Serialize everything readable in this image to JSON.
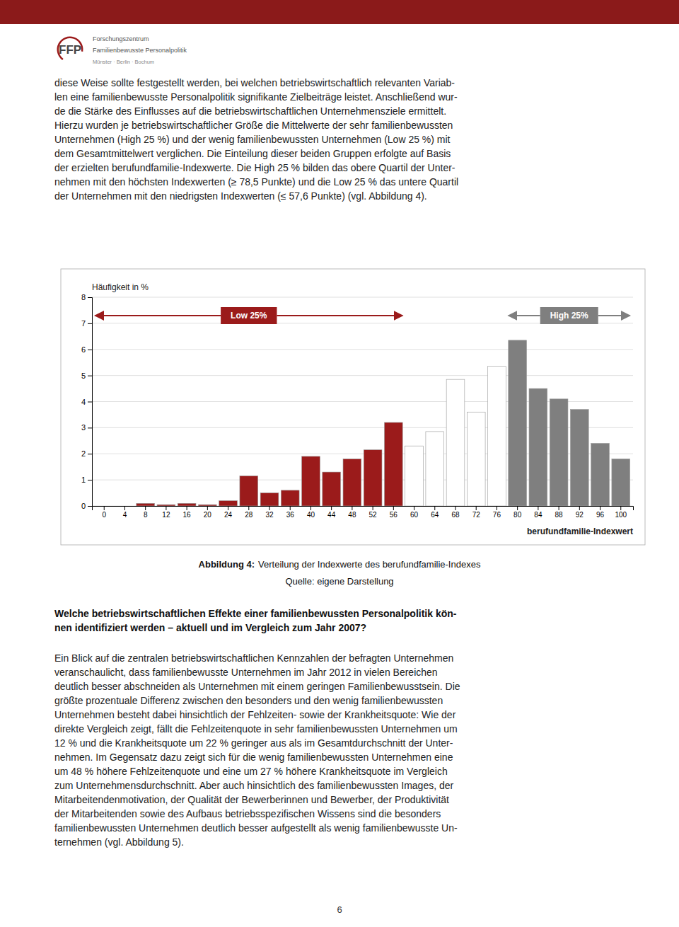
{
  "chart_data": {
    "type": "bar",
    "xlabel": "berufundfamilie-Indexwert",
    "ylabel": "Häufigkeit in %",
    "categories": [
      "0",
      "4",
      "8",
      "12",
      "16",
      "20",
      "24",
      "28",
      "32",
      "36",
      "40",
      "44",
      "48",
      "52",
      "56",
      "60",
      "64",
      "68",
      "72",
      "76",
      "80",
      "84",
      "88",
      "92",
      "96",
      "100"
    ],
    "values": [
      0.0,
      0.0,
      0.1,
      0.05,
      0.1,
      0.05,
      0.2,
      1.15,
      0.5,
      0.6,
      1.9,
      1.3,
      1.8,
      2.15,
      3.2,
      2.3,
      2.85,
      4.85,
      3.6,
      5.35,
      6.35,
      4.5,
      4.1,
      3.7,
      2.4,
      1.8
    ],
    "colors": [
      "#9B1B1B",
      "#9B1B1B",
      "#9B1B1B",
      "#9B1B1B",
      "#9B1B1B",
      "#9B1B1B",
      "#9B1B1B",
      "#9B1B1B",
      "#9B1B1B",
      "#9B1B1B",
      "#9B1B1B",
      "#9B1B1B",
      "#9B1B1B",
      "#9B1B1B",
      "#9B1B1B",
      "#FFFFFF",
      "#FFFFFF",
      "#FFFFFF",
      "#FFFFFF",
      "#FFFFFF",
      "#7F7F7F",
      "#7F7F7F",
      "#7F7F7F",
      "#7F7F7F",
      "#7F7F7F",
      "#7F7F7F"
    ],
    "ylim": [
      0,
      8
    ],
    "yticks": [
      0,
      1,
      2,
      3,
      4,
      5,
      6,
      7,
      8
    ],
    "grid": true,
    "annotations": [
      {
        "text": "Low 25%",
        "color": "#9B1B1B"
      },
      {
        "text": "High 25%",
        "color": "#7F7F7F"
      }
    ]
  },
  "page": {
    "logo": [
      "FFP",
      "Forschungszentrum",
      "Familienbewusste Personalpolitik",
      "Münster · Berlin · Bochum"
    ],
    "body_text": [
      "diese Weise sollte festgestellt werden, bei welchen betriebswirtschaftlich relevanten Variab-",
      "len eine familienbewusste Personalpolitik signifikante Zielbeiträge leistet. Anschließend wur-",
      "de die Stärke des Einflusses auf die betriebswirtschaftlichen Unternehmensziele ermittelt.",
      "Hierzu wurden je betriebswirtschaftlicher Größe die Mittelwerte der sehr familienbewussten",
      "Unternehmen (High 25 %) und der wenig familienbewussten Unternehmen (Low 25 %) mit",
      "dem Gesamtmittelwert verglichen. Die Einteilung dieser beiden Gruppen erfolgte auf Basis",
      "der erzielten berufu​ndfamilie-Indexwerte. Die High 25 % bilden das obere Quartil der Unter-",
      "nehmen mit den höchsten Indexwerten (≥ 78,5 Punkte) und die Low 25 % das untere Quartil",
      "der Unternehmen mit den niedrigsten Indexwerten (≤ 57,6 Punkte) (vgl. Abbildung 4)."
    ],
    "caption_bold": "Abbildung 4:",
    "caption": "Verteilung der Indexwerte des berufundfamilie-Indexes",
    "caption_source": "Quelle: eigene Darstellung",
    "section_text": [
      "Welche betriebswirtschaftlichen Effekte einer familienbewussten Personalpolitik kön-",
      "nen identifiziert werden – aktuell und im Vergleich zum Jahr 2007?"
    ],
    "bottom_text": [
      "Ein Blick auf die zentralen betriebswirtschaftlichen Kennzahlen der befragten Unternehmen",
      "veranschaulicht, dass familienbewusste Unternehmen im Jahr 2012 in vielen Bereichen",
      "deutlich besser abschneiden als Unternehmen mit einem geringen Familienbewusstsein. Die",
      "größte prozentuale Differenz zwischen den besonders und den wenig familienbewussten",
      "Unternehmen besteht dabei hinsichtlich der Fehlzeiten- sowie der Krankheitsquote: Wie der",
      "direkte Vergleich zeigt, fällt die Fehlzeitenquote in sehr familienbewussten Unternehmen um",
      "12 % und die Krankheitsquote um 22 % geringer aus als im Gesamtdurchschnitt der Unter-",
      "nehmen. Im Gegensatz dazu zeigt sich für die wenig familienbewussten Unternehmen eine",
      "um 48 % höhere Fehlzeitenquote und eine um 27 % höhere Krankheitsquote im Vergleich",
      "zum Unternehmensdurchschnitt. Aber auch hinsichtlich des familienbewussten Images, der",
      "Mitarbeitendenmotivation, der Qualität der Bewerberinnen und Bewerber, der Produktivität",
      "der Mitarbeitenden sowie des Aufbaus betriebsspezifischen Wissens sind die besonders",
      "familienbewussten Unternehmen deutlich besser aufgestellt als wenig familienbewusste Un-",
      "ternehmen (vgl. Abbildung 5)."
    ],
    "page_number": "6"
  }
}
